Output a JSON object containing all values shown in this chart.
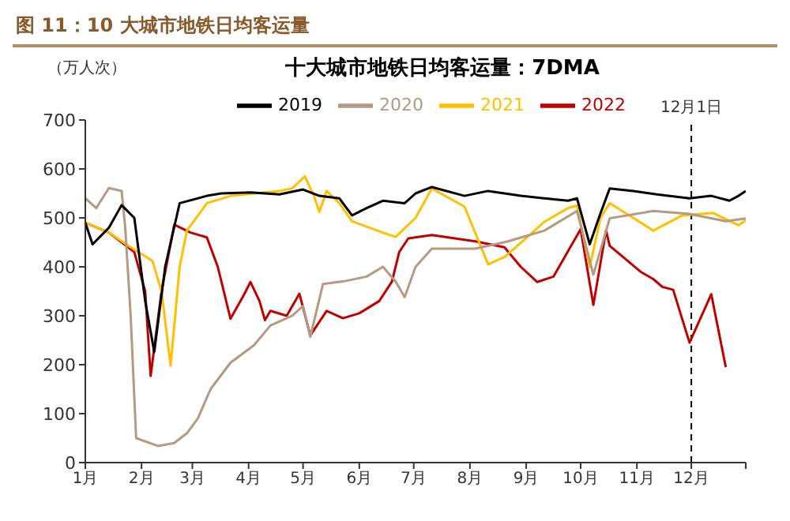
{
  "chart_data": {
    "type": "line",
    "title": "图 11：10 大城市地铁日均客运量",
    "subtitle": "十大城市地铁日均客运量：7DMA",
    "ylabel": "（万人次）",
    "xlim": [
      "--01-01",
      "--12-31"
    ],
    "xticks": [
      {
        "value": "--01-01",
        "label": "1月"
      },
      {
        "value": "--02-01",
        "label": "2月"
      },
      {
        "value": "--03-01",
        "label": "3月"
      },
      {
        "value": "--04-01",
        "label": "4月"
      },
      {
        "value": "--05-01",
        "label": "5月"
      },
      {
        "value": "--06-01",
        "label": "6月"
      },
      {
        "value": "--07-01",
        "label": "7月"
      },
      {
        "value": "--08-01",
        "label": "8月"
      },
      {
        "value": "--09-01",
        "label": "9月"
      },
      {
        "value": "--10-01",
        "label": "10月"
      },
      {
        "value": "--11-01",
        "label": "11月"
      },
      {
        "value": "--12-01",
        "label": "12月"
      },
      {
        "value": "--12-31",
        "label": null
      }
    ],
    "ylim": [
      0,
      700
    ],
    "yticks": [
      0,
      100,
      200,
      300,
      400,
      500,
      600,
      700
    ],
    "grid": false,
    "legend": "top",
    "marker": "none",
    "line_style": "solid",
    "ref_lines": [
      {
        "axis": "x",
        "value": "--12-01",
        "label": "12月1日",
        "color": "#000000",
        "line_style": "dashed"
      }
    ],
    "series": [
      {
        "name": "2022",
        "color": "#c00000",
        "x": [
          "--01-01",
          "--01-14",
          "--01-28",
          "--02-03",
          "--02-06",
          "--02-12",
          "--02-19",
          "--02-28",
          "--03-09",
          "--03-15",
          "--03-22",
          "--03-29",
          "--04-02",
          "--04-07",
          "--04-10",
          "--04-13",
          "--04-22",
          "--04-29",
          "--05-05",
          "--05-14",
          "--05-23",
          "--06-01",
          "--06-12",
          "--06-19",
          "--06-23",
          "--06-28",
          "--07-11",
          "--08-04",
          "--08-20",
          "--08-29",
          "--09-07",
          "--09-16",
          "--10-01",
          "--10-08",
          "--10-15",
          "--10-17",
          "--11-03",
          "--11-10",
          "--11-15",
          "--11-21",
          "--11-30",
          "--12-12",
          "--12-20"
        ],
        "values": [
          490,
          470,
          430,
          350,
          177,
          350,
          486,
          470,
          460,
          400,
          294,
          340,
          369,
          330,
          291,
          310,
          300,
          345,
          260,
          310,
          295,
          305,
          330,
          370,
          430,
          458,
          465,
          452,
          440,
          400,
          369,
          380,
          477,
          322,
          474,
          443,
          390,
          375,
          359,
          353,
          245,
          344,
          195
        ]
      },
      {
        "name": "2021",
        "color": "#ffc000",
        "x": [
          "--01-01",
          "--01-14",
          "--01-26",
          "--02-07",
          "--02-12",
          "--02-17",
          "--02-22",
          "--02-26",
          "--03-09",
          "--03-22",
          "--04-18",
          "--04-25",
          "--05-02",
          "--05-07",
          "--05-10",
          "--05-14",
          "--05-21",
          "--05-28",
          "--06-14",
          "--06-21",
          "--07-02",
          "--07-11",
          "--07-29",
          "--08-11",
          "--08-20",
          "--09-02",
          "--09-11",
          "--09-24",
          "--09-29",
          "--10-06",
          "--10-12",
          "--10-17",
          "--10-30",
          "--11-10",
          "--11-26",
          "--12-13",
          "--12-27",
          "--12-31"
        ],
        "values": [
          490,
          470,
          440,
          412,
          350,
          198,
          400,
          474,
          530,
          545,
          555,
          560,
          585,
          545,
          512,
          555,
          530,
          493,
          470,
          461,
          500,
          560,
          523,
          405,
          420,
          462,
          492,
          520,
          525,
          400,
          500,
          530,
          500,
          474,
          505,
          510,
          485,
          495
        ]
      },
      {
        "name": "2020",
        "color": "#b49a82",
        "x": [
          "--01-01",
          "--01-07",
          "--01-14",
          "--01-21",
          "--01-23",
          "--01-26",
          "--01-29",
          "--02-10",
          "--02-19",
          "--02-26",
          "--03-04",
          "--03-11",
          "--03-22",
          "--04-04",
          "--04-13",
          "--04-25",
          "--05-01",
          "--05-05",
          "--05-12",
          "--05-23",
          "--06-05",
          "--06-14",
          "--06-21",
          "--06-26",
          "--07-02",
          "--07-11",
          "--08-04",
          "--08-22",
          "--09-11",
          "--09-29",
          "--10-08",
          "--10-17",
          "--11-10",
          "--11-30",
          "--12-20",
          "--12-31"
        ],
        "values": [
          540,
          520,
          561,
          555,
          480,
          300,
          50,
          34,
          40,
          60,
          90,
          150,
          204,
          240,
          280,
          300,
          320,
          257,
          365,
          370,
          380,
          400,
          370,
          338,
          400,
          437,
          437,
          452,
          474,
          514,
          384,
          499,
          514,
          508,
          493,
          499
        ]
      },
      {
        "name": "2019",
        "color": "#000000",
        "x": [
          "--01-01",
          "--01-05",
          "--01-14",
          "--01-21",
          "--01-28",
          "--02-03",
          "--02-08",
          "--02-14",
          "--02-22",
          "--03-09",
          "--03-17",
          "--04-02",
          "--04-18",
          "--05-01",
          "--05-10",
          "--05-21",
          "--05-28",
          "--06-05",
          "--06-14",
          "--06-26",
          "--07-02",
          "--07-11",
          "--07-29",
          "--08-11",
          "--08-29",
          "--09-11",
          "--09-24",
          "--09-29",
          "--10-06",
          "--10-12",
          "--10-17",
          "--10-30",
          "--11-12",
          "--11-30",
          "--12-12",
          "--12-22",
          "--12-27",
          "--12-31"
        ],
        "values": [
          490,
          446,
          480,
          526,
          500,
          330,
          226,
          400,
          530,
          545,
          550,
          552,
          548,
          558,
          545,
          540,
          505,
          520,
          535,
          530,
          550,
          563,
          545,
          555,
          545,
          540,
          535,
          540,
          446,
          510,
          560,
          555,
          548,
          540,
          545,
          535,
          545,
          555
        ]
      }
    ]
  }
}
